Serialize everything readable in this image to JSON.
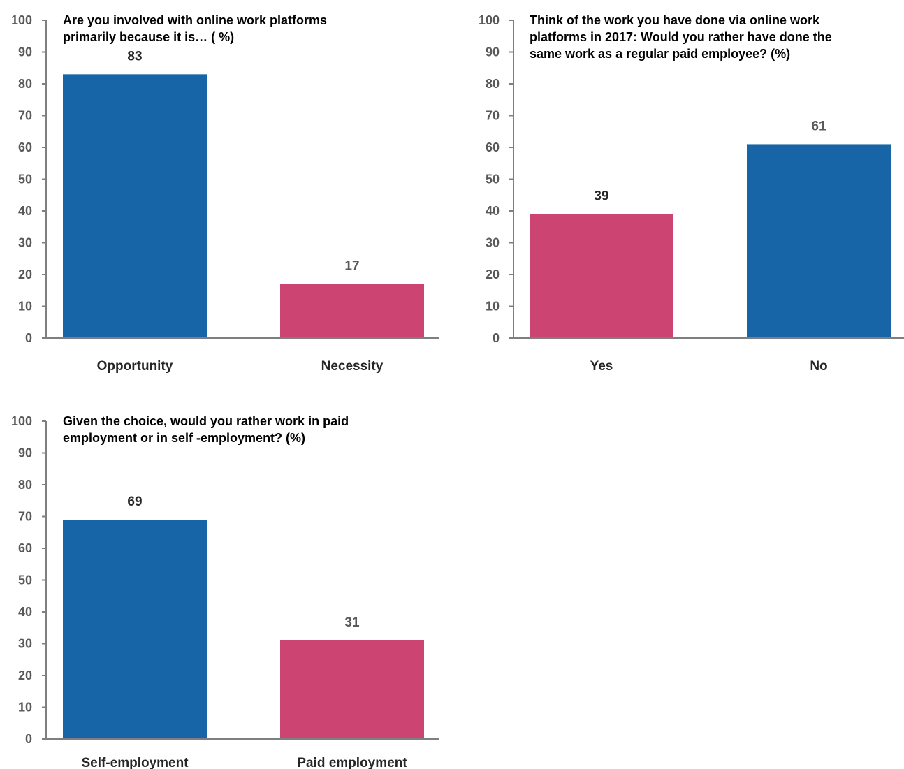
{
  "colors": {
    "primary_bar": "#1764a7",
    "secondary_bar": "#cc4471",
    "axis": "#7f7f7f",
    "tick_text": "#595959",
    "value_label_dark": "#262626",
    "value_label_gray": "#595959"
  },
  "chart_data": [
    {
      "type": "bar",
      "title_lines": [
        "Are you involved with online work platforms",
        "primarily because it is… ( %)"
      ],
      "title": "Are you involved with online work platforms primarily because it is… ( %)",
      "xlabel": "",
      "ylabel": "",
      "ylim": [
        0,
        100
      ],
      "yticks": [
        0,
        10,
        20,
        30,
        40,
        50,
        60,
        70,
        80,
        90,
        100
      ],
      "grid": false,
      "categories": [
        "Opportunity",
        "Necessity"
      ],
      "values": [
        83,
        17
      ],
      "value_labels": [
        "83",
        "17"
      ],
      "bar_colors": [
        "#1764a7",
        "#cc4471"
      ],
      "label_colors": [
        "#262626",
        "#595959"
      ]
    },
    {
      "type": "bar",
      "title_lines": [
        "Think of the work you have done via online work",
        "platforms in 2017: Would you rather have done the",
        "same work as a regular paid employee? (%)"
      ],
      "title": "Think of the work you have done via online work platforms in 2017: Would you rather have done the same work as a regular paid employee? (%)",
      "xlabel": "",
      "ylabel": "",
      "ylim": [
        0,
        100
      ],
      "yticks": [
        0,
        10,
        20,
        30,
        40,
        50,
        60,
        70,
        80,
        90,
        100
      ],
      "grid": false,
      "categories": [
        "Yes",
        "No"
      ],
      "values": [
        39,
        61
      ],
      "value_labels": [
        "39",
        "61"
      ],
      "bar_colors": [
        "#cc4471",
        "#1764a7"
      ],
      "label_colors": [
        "#262626",
        "#595959"
      ]
    },
    {
      "type": "bar",
      "title_lines": [
        "Given the choice, would you rather work in paid",
        "employment or in self -employment? (%)"
      ],
      "title": "Given the choice, would you rather work in paid employment or in self -employment? (%)",
      "xlabel": "",
      "ylabel": "",
      "ylim": [
        0,
        100
      ],
      "yticks": [
        0,
        10,
        20,
        30,
        40,
        50,
        60,
        70,
        80,
        90,
        100
      ],
      "grid": false,
      "categories": [
        "Self-employment",
        "Paid employment"
      ],
      "values": [
        69,
        31
      ],
      "value_labels": [
        "69",
        "31"
      ],
      "bar_colors": [
        "#1764a7",
        "#cc4471"
      ],
      "label_colors": [
        "#262626",
        "#595959"
      ]
    }
  ]
}
